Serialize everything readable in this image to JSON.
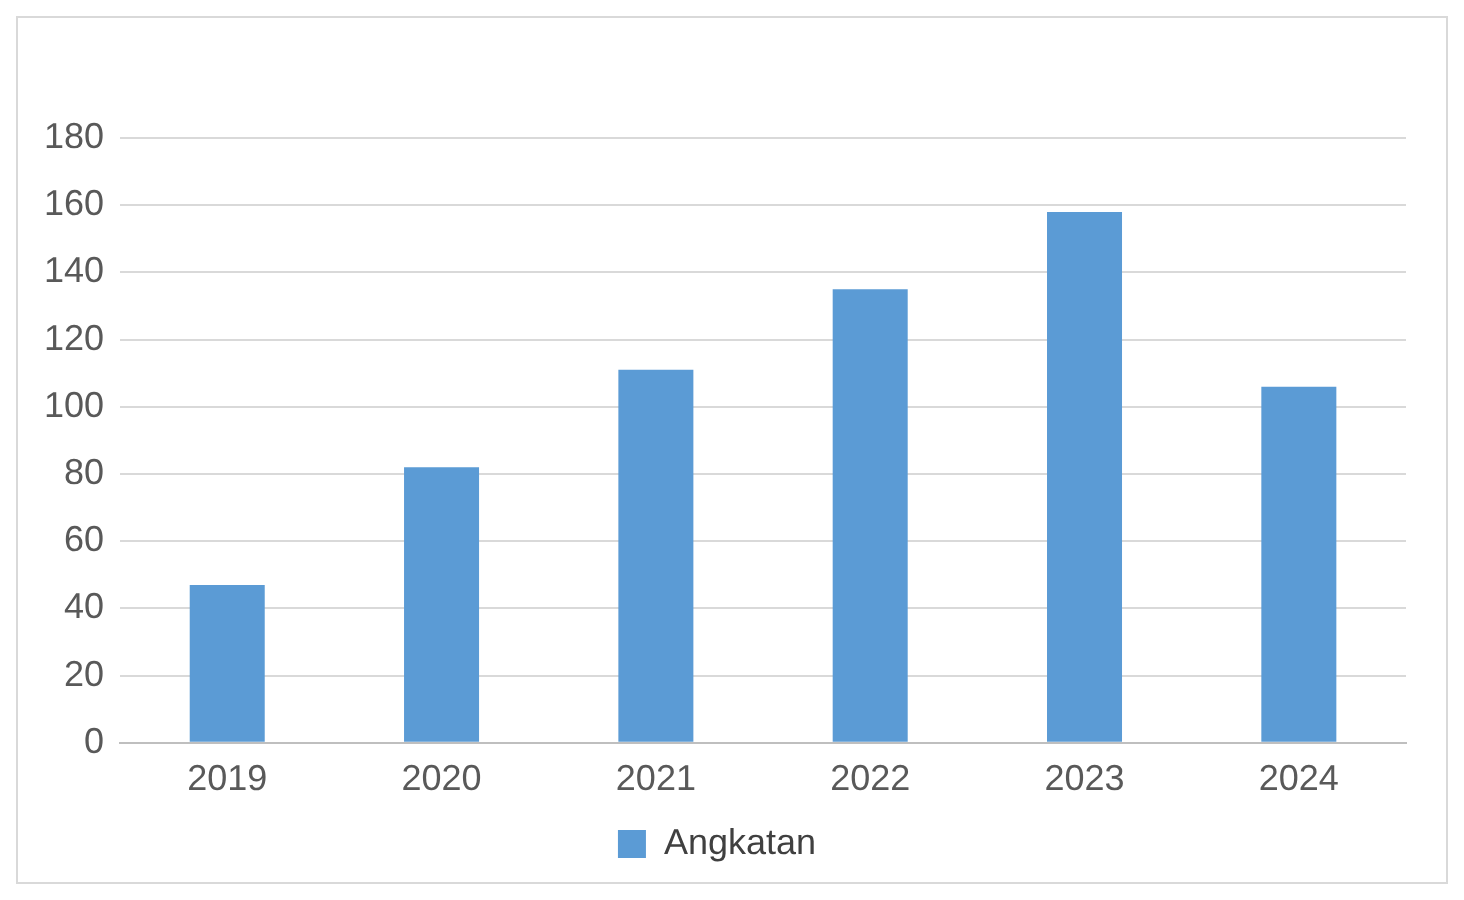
{
  "chart_data": {
    "type": "bar",
    "categories": [
      "2019",
      "2020",
      "2021",
      "2022",
      "2023",
      "2024"
    ],
    "series": [
      {
        "name": "Angkatan",
        "color": "#5b9bd5",
        "values": [
          47,
          82,
          111,
          135,
          158,
          106
        ]
      }
    ],
    "ylim": [
      0,
      180
    ],
    "yticks": [
      0,
      20,
      40,
      60,
      80,
      100,
      120,
      140,
      160,
      180
    ],
    "grid": "y",
    "legend": "bottom"
  }
}
